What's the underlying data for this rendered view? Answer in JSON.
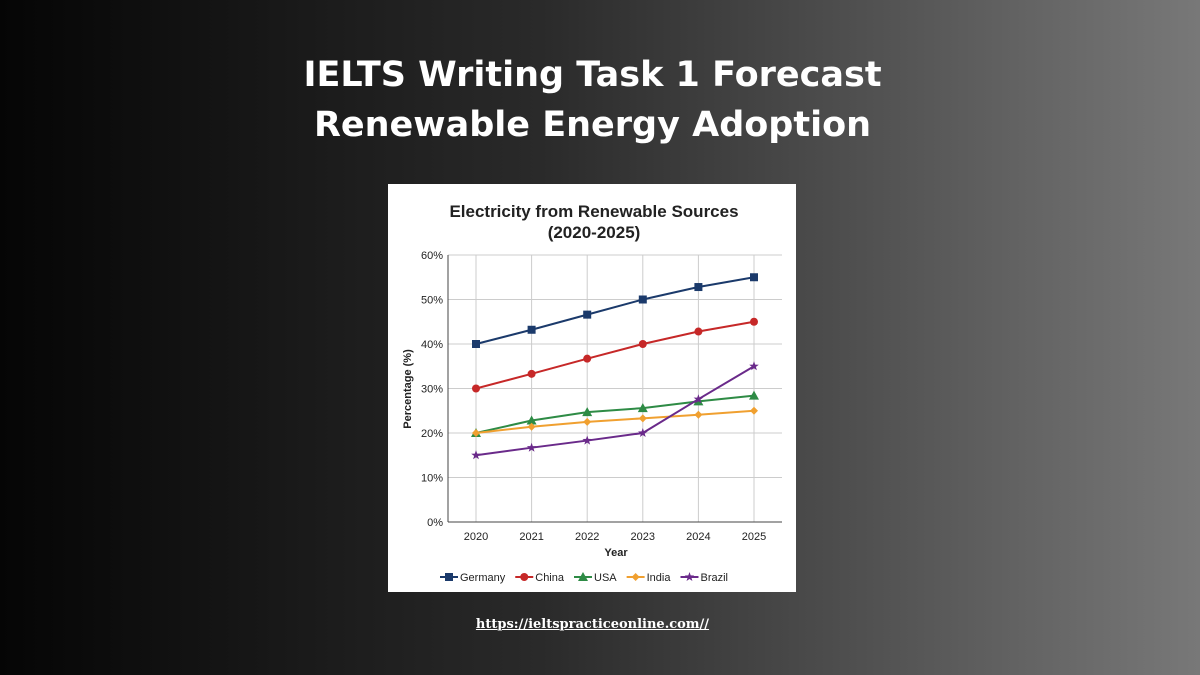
{
  "header": {
    "line1": "IELTS Writing Task 1 Forecast",
    "line2": "Renewable Energy Adoption"
  },
  "footer": {
    "link": "https://ieltspracticeonline.com//"
  },
  "chart_data": {
    "type": "line",
    "title": "Electricity from Renewable Sources",
    "subtitle": "(2020-2025)",
    "xlabel": "Year",
    "ylabel": "Percentage (%)",
    "x": [
      "2020",
      "2021",
      "2022",
      "2023",
      "2024",
      "2025"
    ],
    "ylim": [
      0,
      60
    ],
    "yticks": [
      "0%",
      "10%",
      "20%",
      "30%",
      "40%",
      "50%",
      "60%"
    ],
    "grid": true,
    "legend": "bottom",
    "series": [
      {
        "name": "Germany",
        "color": "#1b3a6b",
        "marker": "square",
        "values": [
          40,
          43.2,
          46.6,
          50,
          52.8,
          55
        ]
      },
      {
        "name": "China",
        "color": "#c62828",
        "marker": "circle",
        "values": [
          30,
          33.3,
          36.7,
          40,
          42.8,
          45
        ]
      },
      {
        "name": "USA",
        "color": "#2e8b45",
        "marker": "triangle",
        "values": [
          20,
          22.8,
          24.7,
          25.6,
          27.1,
          28.4
        ]
      },
      {
        "name": "India",
        "color": "#f0a030",
        "marker": "diamond",
        "values": [
          20,
          21.4,
          22.5,
          23.3,
          24.1,
          25
        ]
      },
      {
        "name": "Brazil",
        "color": "#6a2a8a",
        "marker": "star",
        "values": [
          15,
          16.7,
          18.3,
          20,
          27.6,
          35
        ]
      }
    ]
  }
}
